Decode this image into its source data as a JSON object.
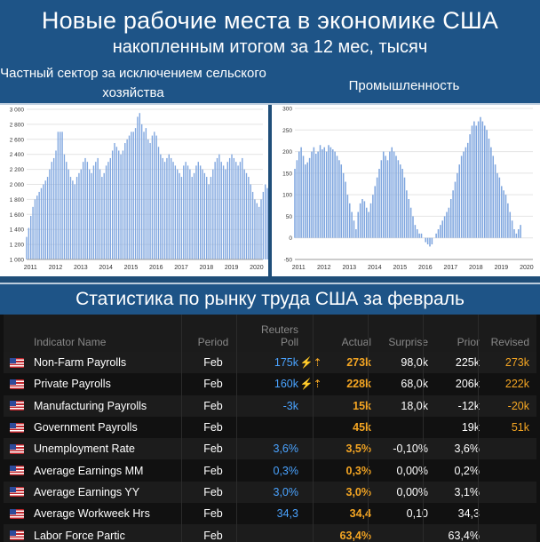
{
  "header": {
    "title": "Новые рабочие места в экономике США",
    "subtitle": "накопленным итогом за 12 мес, тысяч"
  },
  "panels": {
    "left_title": "Частный сектор за исключением сельского хозяйства",
    "right_title": "Промышленность"
  },
  "chart_data": [
    {
      "type": "bar",
      "title": "Частный сектор за исключением сельского хозяйства",
      "color": "#7fa6df",
      "ylim": [
        1000,
        3000
      ],
      "yticks": [
        "1 000",
        "1 200",
        "1 400",
        "1 600",
        "1 800",
        "2 000",
        "2 200",
        "2 400",
        "2 600",
        "2 800",
        "3 000"
      ],
      "xticks": [
        "2011",
        "2012",
        "2013",
        "2014",
        "2015",
        "2016",
        "2017",
        "2018",
        "2019",
        "2020"
      ],
      "x_start": 2010.85,
      "x_step": 0.0833,
      "values": [
        1300,
        1420,
        1580,
        1700,
        1800,
        1850,
        1900,
        1950,
        2000,
        2050,
        2100,
        2200,
        2300,
        2350,
        2450,
        2700,
        2700,
        2700,
        2400,
        2300,
        2200,
        2100,
        2050,
        2000,
        2100,
        2150,
        2200,
        2300,
        2350,
        2300,
        2200,
        2150,
        2250,
        2300,
        2350,
        2200,
        2100,
        2150,
        2250,
        2300,
        2350,
        2450,
        2550,
        2500,
        2450,
        2400,
        2450,
        2550,
        2600,
        2650,
        2700,
        2700,
        2750,
        2900,
        2950,
        2800,
        2700,
        2750,
        2600,
        2550,
        2650,
        2700,
        2650,
        2500,
        2400,
        2350,
        2300,
        2350,
        2400,
        2350,
        2300,
        2250,
        2200,
        2150,
        2100,
        2250,
        2300,
        2250,
        2200,
        2100,
        2150,
        2250,
        2300,
        2250,
        2200,
        2150,
        2100,
        2000,
        2100,
        2200,
        2300,
        2350,
        2400,
        2300,
        2250,
        2200,
        2300,
        2350,
        2400,
        2350,
        2300,
        2250,
        2300,
        2350,
        2200,
        2150,
        2100,
        2000,
        1900,
        1800,
        1750,
        1700,
        1800,
        1900,
        2000,
        1950,
        1900,
        2050,
        2150
      ]
    },
    {
      "type": "bar",
      "title": "Промышленность",
      "color": "#7fa6df",
      "ylim": [
        -50,
        300
      ],
      "yticks": [
        "-50",
        "0",
        "50",
        "100",
        "150",
        "200",
        "250",
        "300"
      ],
      "xticks": [
        "2011",
        "2012",
        "2013",
        "2014",
        "2015",
        "2016",
        "2017",
        "2018",
        "2019",
        "2020"
      ],
      "x_start": 2010.85,
      "x_step": 0.0833,
      "values": [
        160,
        180,
        200,
        210,
        190,
        170,
        175,
        185,
        200,
        210,
        195,
        200,
        215,
        205,
        210,
        200,
        215,
        210,
        205,
        200,
        190,
        180,
        170,
        150,
        130,
        100,
        80,
        60,
        40,
        20,
        60,
        80,
        90,
        85,
        70,
        60,
        80,
        100,
        120,
        140,
        160,
        180,
        200,
        190,
        180,
        200,
        210,
        200,
        190,
        180,
        170,
        160,
        140,
        110,
        90,
        70,
        50,
        30,
        20,
        10,
        10,
        0,
        -10,
        -15,
        -20,
        -15,
        0,
        10,
        20,
        30,
        40,
        50,
        60,
        70,
        90,
        110,
        130,
        150,
        170,
        190,
        200,
        210,
        220,
        240,
        260,
        270,
        260,
        270,
        280,
        270,
        260,
        250,
        230,
        210,
        190,
        170,
        150,
        140,
        120,
        110,
        100,
        80,
        60,
        40,
        20,
        10,
        20,
        30
      ]
    }
  ],
  "section": {
    "title": "Статистика по рынку труда США за февраль"
  },
  "table": {
    "headers": {
      "indicator": "Indicator Name",
      "period": "Period",
      "poll_line1": "Reuters",
      "poll_line2": "Poll",
      "actual": "Actual",
      "surprise": "Surprise",
      "prior": "Prior",
      "revised": "Revised"
    },
    "rows": [
      {
        "name": "Non-Farm Payrolls",
        "period": "Feb",
        "poll": "175k",
        "arrow": "⚡⇡",
        "actual": "273k",
        "surprise": "98,0k",
        "prior": "225k",
        "revised": "273k"
      },
      {
        "name": "Private Payrolls",
        "period": "Feb",
        "poll": "160k",
        "arrow": "⚡⇡",
        "actual": "228k",
        "surprise": "68,0k",
        "prior": "206k",
        "revised": "222k"
      },
      {
        "name": "Manufacturing Payrolls",
        "period": "Feb",
        "poll": "-3k",
        "arrow": "",
        "actual": "15k",
        "surprise": "18,0k",
        "prior": "-12k",
        "revised": "-20k"
      },
      {
        "name": "Government Payrolls",
        "period": "Feb",
        "poll": "",
        "arrow": "",
        "actual": "45k",
        "surprise": "",
        "prior": "19k",
        "revised": "51k"
      },
      {
        "name": "Unemployment Rate",
        "period": "Feb",
        "poll": "3,6%",
        "arrow": "",
        "actual": "3,5%",
        "surprise": "-0,10%",
        "prior": "3,6%",
        "revised": ""
      },
      {
        "name": "Average Earnings MM",
        "period": "Feb",
        "poll": "0,3%",
        "arrow": "",
        "actual": "0,3%",
        "surprise": "0,00%",
        "prior": "0,2%",
        "revised": ""
      },
      {
        "name": "Average Earnings YY",
        "period": "Feb",
        "poll": "3,0%",
        "arrow": "",
        "actual": "3,0%",
        "surprise": "0,00%",
        "prior": "3,1%",
        "revised": ""
      },
      {
        "name": "Average Workweek Hrs",
        "period": "Feb",
        "poll": "34,3",
        "arrow": "",
        "actual": "34,4",
        "surprise": "0,10",
        "prior": "34,3",
        "revised": ""
      },
      {
        "name": "Labor Force Partic",
        "period": "Feb",
        "poll": "",
        "arrow": "",
        "actual": "63,4%",
        "surprise": "",
        "prior": "63,4%",
        "revised": ""
      }
    ]
  }
}
